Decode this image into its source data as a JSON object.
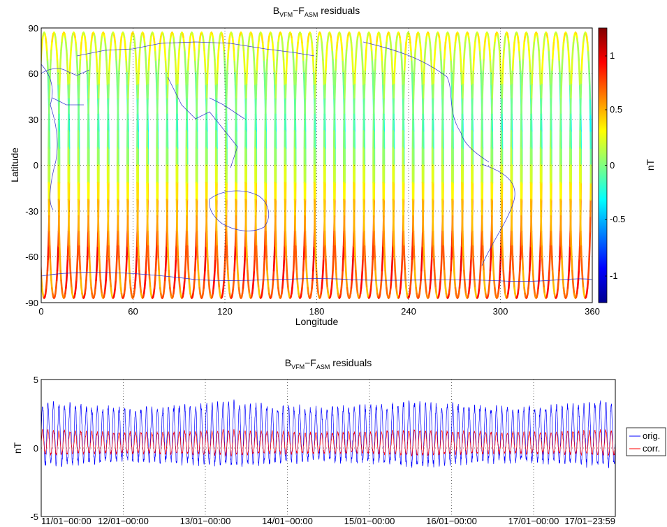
{
  "chart_data": [
    {
      "type": "heatmap",
      "title": {
        "B": "B",
        "b_sub": "VFM",
        "mid": "−F",
        "f_sub": "ASM",
        "rest": " residuals"
      },
      "xlabel": "Longitude",
      "ylabel": "Latitude",
      "xlim": [
        0,
        360
      ],
      "ylim": [
        -90,
        90
      ],
      "x_ticks": [
        "0",
        "60",
        "120",
        "180",
        "240",
        "300",
        "360"
      ],
      "y_ticks": [
        "-90",
        "-60",
        "-30",
        "0",
        "30",
        "60",
        "90"
      ],
      "grid": "dotted",
      "orbit_tracks": 56,
      "colorbar": {
        "label": "nT",
        "range": [
          -1.2,
          1.2
        ],
        "ticks": [
          "-1",
          "-0.5",
          "0",
          "0.5",
          "1"
        ],
        "colormap": "jet"
      },
      "residual_pattern": [
        {
          "latitude": 90,
          "value": 0.3
        },
        {
          "latitude": 60,
          "value": 0.1
        },
        {
          "latitude": 30,
          "value": -0.35
        },
        {
          "latitude": 0,
          "value": 0.05
        },
        {
          "latitude": -30,
          "value": 0.6
        },
        {
          "latitude": -60,
          "value": 0.85
        },
        {
          "latitude": -90,
          "value": 0.75
        }
      ]
    },
    {
      "type": "line",
      "title": {
        "B": "B",
        "b_sub": "VFM",
        "mid": "−F",
        "f_sub": "ASM",
        "rest": " residuals"
      },
      "ylabel": "nT",
      "ylim": [
        -5,
        5
      ],
      "y_ticks": [
        "-5",
        "0",
        "5"
      ],
      "x_ticks": [
        "11/01−00:00",
        "12/01−00:00",
        "13/01−00:00",
        "14/01−00:00",
        "15/01−00:00",
        "16/01−00:00",
        "17/01−00:00",
        "17/01−23:59"
      ],
      "x_days": [
        0,
        1,
        2,
        3,
        4,
        5,
        6,
        6.9993
      ],
      "grid": "dotted",
      "legend_position": "outside-right",
      "series": [
        {
          "name": "orig.",
          "color": "#0000ff",
          "cycles_per_day": 15,
          "max": 3.3,
          "min": -1.5,
          "mean": 0.8
        },
        {
          "name": "corr.",
          "color": "#ff0000",
          "cycles_per_day": 15,
          "max": 1.3,
          "min": -0.6,
          "mean": 0.3
        }
      ]
    }
  ]
}
